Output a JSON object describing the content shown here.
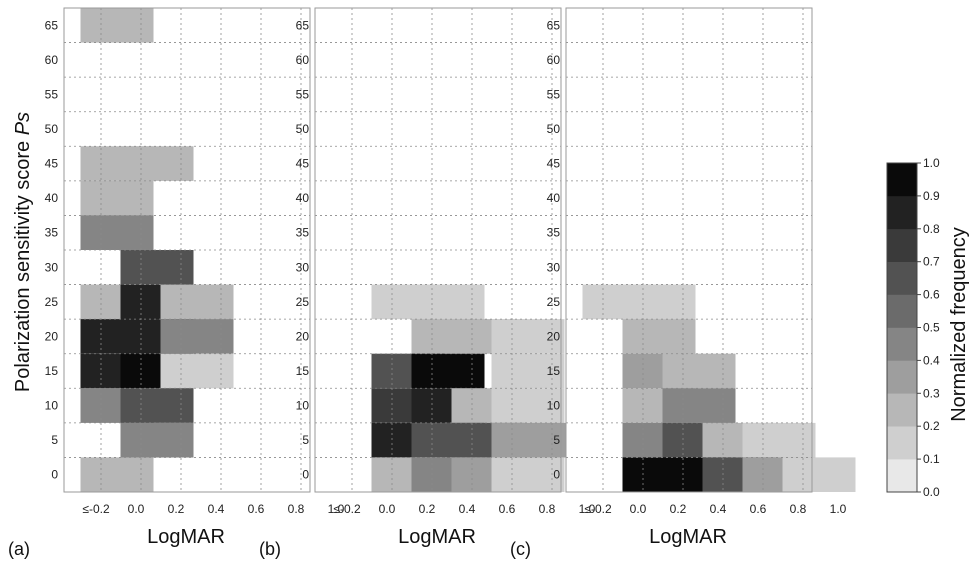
{
  "chart_data": {
    "type": "heatmap",
    "ylabel_main": "Polarization sensitivity score ",
    "ylabel_italic": "Ps",
    "colorbar": {
      "label": "Normalized frequency",
      "ticks": [
        "0.0",
        "0.1",
        "0.2",
        "0.3",
        "0.4",
        "0.5",
        "0.6",
        "0.7",
        "0.8",
        "0.9",
        "1.0"
      ],
      "range": [
        0,
        1
      ],
      "colors": [
        "#e8e8e8",
        "#cfcfcf",
        "#b7b7b7",
        "#9e9e9e",
        "#858585",
        "#6b6b6b",
        "#525252",
        "#3a3a3a",
        "#222222",
        "#0a0a0a"
      ]
    },
    "y_values": [
      0,
      5,
      10,
      15,
      20,
      25,
      30,
      35,
      40,
      45,
      50,
      55,
      60,
      65
    ],
    "y_ticks": [
      "0",
      "5",
      "10",
      "15",
      "20",
      "25",
      "30",
      "35",
      "40",
      "45",
      "50",
      "55",
      "60",
      "65"
    ],
    "x_values": [
      -0.2,
      0.0,
      0.2,
      0.4,
      0.6,
      0.8,
      1.0
    ],
    "x_ticks": [
      "≤-0.2",
      "0.0",
      "0.2",
      "0.4",
      "0.6",
      "0.8",
      "1.0"
    ],
    "panels": [
      {
        "label": "(a)",
        "xlabel": "LogMAR",
        "cells": [
          {
            "x": 0.0,
            "y": 65,
            "v": 0.2
          },
          {
            "x": 0.0,
            "y": 45,
            "v": 0.2
          },
          {
            "x": 0.2,
            "y": 45,
            "v": 0.2
          },
          {
            "x": 0.0,
            "y": 40,
            "v": 0.2
          },
          {
            "x": 0.0,
            "y": 35,
            "v": 0.45
          },
          {
            "x": 0.2,
            "y": 30,
            "v": 0.65
          },
          {
            "x": 0.0,
            "y": 25,
            "v": 0.2
          },
          {
            "x": 0.2,
            "y": 25,
            "v": 0.85
          },
          {
            "x": 0.4,
            "y": 25,
            "v": 0.2
          },
          {
            "x": 0.0,
            "y": 20,
            "v": 0.85
          },
          {
            "x": 0.2,
            "y": 20,
            "v": 0.85
          },
          {
            "x": 0.4,
            "y": 20,
            "v": 0.4
          },
          {
            "x": 0.0,
            "y": 15,
            "v": 0.85
          },
          {
            "x": 0.2,
            "y": 15,
            "v": 1.0
          },
          {
            "x": 0.4,
            "y": 15,
            "v": 0.15
          },
          {
            "x": 0.0,
            "y": 10,
            "v": 0.45
          },
          {
            "x": 0.2,
            "y": 10,
            "v": 0.65
          },
          {
            "x": 0.2,
            "y": 5,
            "v": 0.45
          },
          {
            "x": 0.0,
            "y": 0,
            "v": 0.2
          }
        ]
      },
      {
        "label": "(b)",
        "xlabel": "LogMAR",
        "cells": [
          {
            "x": 0.2,
            "y": 25,
            "v": 0.1
          },
          {
            "x": 0.4,
            "y": 25,
            "v": 0.1
          },
          {
            "x": 0.4,
            "y": 20,
            "v": 0.2
          },
          {
            "x": 0.6,
            "y": 20,
            "v": 0.2
          },
          {
            "x": 0.8,
            "y": 20,
            "v": 0.1
          },
          {
            "x": 0.2,
            "y": 15,
            "v": 0.6
          },
          {
            "x": 0.4,
            "y": 15,
            "v": 1.0
          },
          {
            "x": 0.8,
            "y": 15,
            "v": 0.1
          },
          {
            "x": 0.2,
            "y": 10,
            "v": 0.7
          },
          {
            "x": 0.4,
            "y": 10,
            "v": 0.8
          },
          {
            "x": 0.6,
            "y": 10,
            "v": 0.2
          },
          {
            "x": 0.8,
            "y": 10,
            "v": 0.1
          },
          {
            "x": 0.2,
            "y": 5,
            "v": 0.8
          },
          {
            "x": 0.4,
            "y": 5,
            "v": 0.6
          },
          {
            "x": 0.6,
            "y": 5,
            "v": 0.6
          },
          {
            "x": 0.8,
            "y": 5,
            "v": 0.35
          },
          {
            "x": 1.0,
            "y": 5,
            "v": 0.35
          },
          {
            "x": 0.2,
            "y": 0,
            "v": 0.2
          },
          {
            "x": 0.4,
            "y": 0,
            "v": 0.45
          },
          {
            "x": 0.6,
            "y": 0,
            "v": 0.35
          },
          {
            "x": 0.8,
            "y": 0,
            "v": 0.1
          }
        ]
      },
      {
        "label": "(c)",
        "xlabel": "LogMAR",
        "cells": [
          {
            "x": 0.0,
            "y": 25,
            "v": 0.1
          },
          {
            "x": 0.2,
            "y": 25,
            "v": 0.1
          },
          {
            "x": 0.2,
            "y": 20,
            "v": 0.2
          },
          {
            "x": 0.2,
            "y": 15,
            "v": 0.3
          },
          {
            "x": 0.4,
            "y": 15,
            "v": 0.2
          },
          {
            "x": 0.2,
            "y": 10,
            "v": 0.2
          },
          {
            "x": 0.4,
            "y": 10,
            "v": 0.45
          },
          {
            "x": 0.2,
            "y": 5,
            "v": 0.45
          },
          {
            "x": 0.4,
            "y": 5,
            "v": 0.65
          },
          {
            "x": 0.6,
            "y": 5,
            "v": 0.2
          },
          {
            "x": 0.8,
            "y": 5,
            "v": 0.1
          },
          {
            "x": 0.2,
            "y": 0,
            "v": 1.0
          },
          {
            "x": 0.4,
            "y": 0,
            "v": 0.9
          },
          {
            "x": 0.6,
            "y": 0,
            "v": 0.6
          },
          {
            "x": 0.8,
            "y": 0,
            "v": 0.35
          },
          {
            "x": 1.0,
            "y": 0,
            "v": 0.1
          }
        ]
      }
    ]
  }
}
